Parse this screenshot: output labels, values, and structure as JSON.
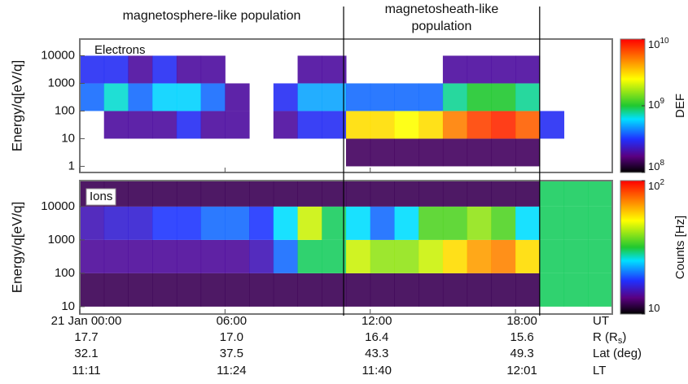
{
  "chart_data": [
    {
      "type": "heatmap",
      "label": "Electrons",
      "ylabel": "Energy/q[eV/q]",
      "log_y": true,
      "xlim": [
        0,
        22
      ],
      "xbins": [
        0,
        1,
        2,
        3,
        4,
        5,
        6,
        7,
        8,
        9,
        10,
        11,
        12,
        13,
        14,
        15,
        16,
        17,
        18,
        19,
        20,
        21,
        22
      ],
      "ylim": [
        0.6,
        40000
      ],
      "yticks": [
        1,
        10,
        100,
        1000,
        10000
      ],
      "ybins": [
        1,
        10,
        100,
        1000,
        10000
      ],
      "values": [
        [
          null,
          null,
          null,
          null,
          null,
          null,
          null,
          null,
          null,
          null,
          null,
          150000000,
          150000000,
          150000000,
          150000000,
          150000000,
          150000000,
          150000000,
          150000000,
          null,
          null,
          null
        ],
        [
          null,
          200000000,
          200000000,
          200000000,
          300000000,
          200000000,
          200000000,
          null,
          200000000,
          300000000,
          300000000,
          3000000000,
          3000000000,
          2500000000,
          3000000000,
          5000000000,
          7000000000,
          8000000000,
          6000000000,
          300000000,
          null,
          null
        ],
        [
          400000000,
          700000000,
          400000000,
          600000000,
          600000000,
          400000000,
          200000000,
          null,
          300000000,
          500000000,
          500000000,
          400000000,
          400000000,
          400000000,
          400000000,
          800000000,
          1000000000,
          1000000000,
          800000000,
          null,
          null,
          null
        ],
        [
          300000000,
          300000000,
          200000000,
          300000000,
          200000000,
          200000000,
          null,
          null,
          null,
          200000000,
          200000000,
          null,
          null,
          null,
          null,
          200000000,
          200000000,
          200000000,
          200000000,
          null,
          null,
          null
        ]
      ],
      "colorbar": {
        "label": "DEF",
        "log": true,
        "clim": [
          100000000,
          10000000000
        ],
        "ticks": [
          {
            "value": 100000000,
            "label": "10",
            "sup": "8"
          },
          {
            "value": 1000000000,
            "label": "10",
            "sup": "9"
          },
          {
            "value": 10000000000,
            "label": "10",
            "sup": "10"
          }
        ]
      }
    },
    {
      "type": "heatmap",
      "label": "Ions",
      "ylabel": "Energy/q[eV/q]",
      "log_y": true,
      "xlim": [
        0,
        22
      ],
      "xbins": [
        0,
        1,
        2,
        3,
        4,
        5,
        6,
        7,
        8,
        9,
        10,
        11,
        12,
        13,
        14,
        15,
        16,
        17,
        18,
        19,
        20,
        21,
        22
      ],
      "ylim": [
        6,
        60000
      ],
      "yticks": [
        10,
        100,
        1000,
        10000
      ],
      "ybins": [
        10,
        100,
        1000,
        10000,
        60000
      ],
      "values": [
        [
          12,
          12,
          12,
          12,
          12,
          12,
          12,
          12,
          12,
          12,
          12,
          12,
          12,
          12,
          12,
          12,
          12,
          12,
          12,
          30,
          30,
          30
        ],
        [
          14,
          14,
          14,
          14,
          14,
          14,
          14,
          15,
          20,
          30,
          30,
          45,
          40,
          40,
          45,
          55,
          65,
          70,
          55,
          30,
          30,
          30
        ],
        [
          15,
          16,
          16,
          18,
          18,
          20,
          20,
          18,
          25,
          45,
          30,
          25,
          20,
          25,
          35,
          35,
          40,
          35,
          25,
          30,
          30,
          30
        ],
        [
          12,
          12,
          12,
          12,
          12,
          12,
          12,
          12,
          12,
          12,
          12,
          12,
          12,
          12,
          12,
          12,
          12,
          12,
          12,
          30,
          30,
          30
        ]
      ],
      "colorbar": {
        "label": "Counts [Hz]",
        "log": true,
        "clim": [
          10,
          100
        ],
        "ticks": [
          {
            "value": 10,
            "label": "10",
            "sup": ""
          },
          {
            "value": 100,
            "label": "10",
            "sup": "2"
          }
        ]
      }
    }
  ],
  "time_axis": {
    "name": "UT",
    "xticks": [
      {
        "value": 0,
        "label": "21 Jan 00:00"
      },
      {
        "value": 6,
        "label": "06:00"
      },
      {
        "value": 12,
        "label": "12:00"
      },
      {
        "value": 18,
        "label": "18:00"
      }
    ],
    "rows": [
      {
        "name": "R (R",
        "sub": "s",
        "suffix": ")",
        "labels": [
          "17.7",
          "17.0",
          "16.4",
          "15.6"
        ]
      },
      {
        "name": "Lat (deg)",
        "sub": "",
        "suffix": "",
        "labels": [
          "32.1",
          "37.5",
          "43.3",
          "49.3"
        ]
      },
      {
        "name": "LT",
        "sub": "",
        "suffix": "",
        "labels": [
          "11:11",
          "11:24",
          "11:40",
          "12:01"
        ]
      }
    ]
  },
  "annotations": {
    "boundaries": [
      10.9,
      19.0
    ],
    "regions": [
      {
        "lines": [
          "magnetosphere-like population"
        ]
      },
      {
        "lines": [
          "magnetosheath-like",
          "population"
        ]
      }
    ]
  }
}
